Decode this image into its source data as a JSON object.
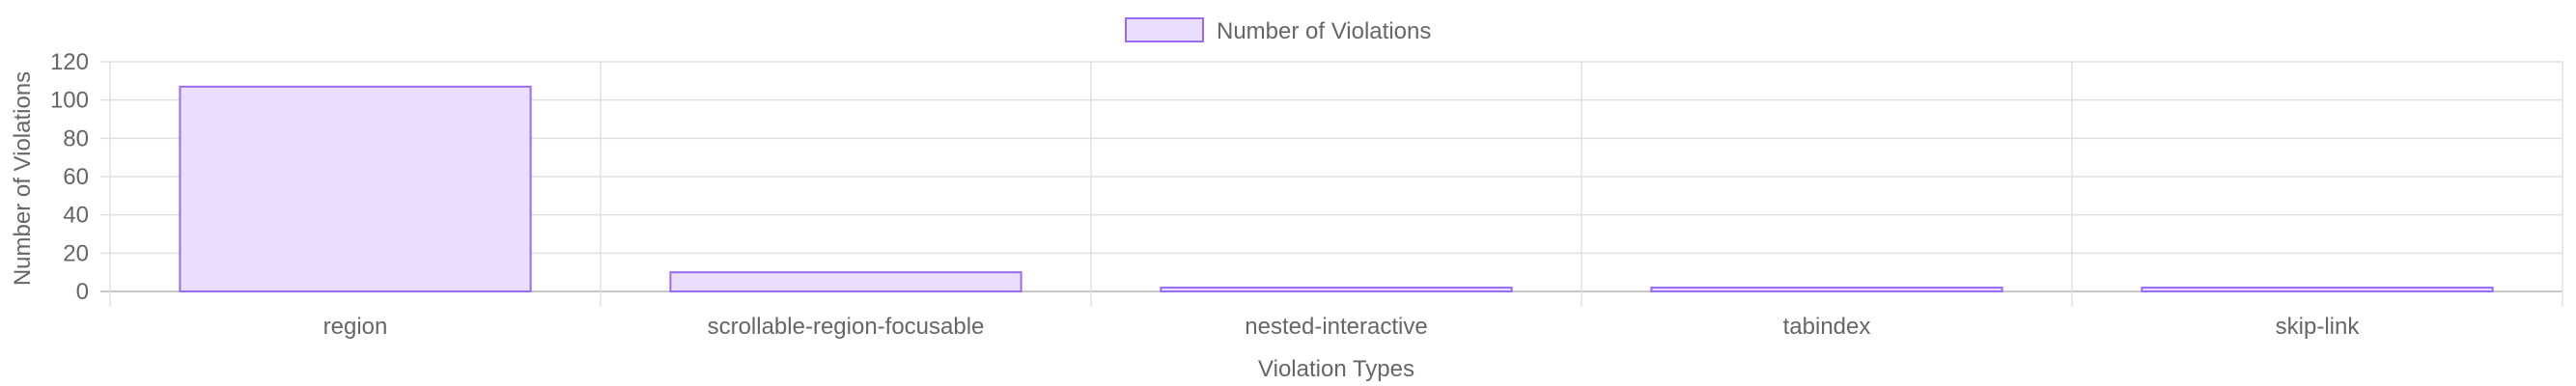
{
  "chart_data": {
    "type": "bar",
    "title": "",
    "xlabel": "Violation Types",
    "ylabel": "Number of Violations",
    "categories": [
      "region",
      "scrollable-region-focusable",
      "nested-interactive",
      "tabindex",
      "skip-link"
    ],
    "series": [
      {
        "name": "Number of Violations",
        "values": [
          107,
          10,
          2,
          2,
          2
        ]
      }
    ],
    "ylim": [
      0,
      120
    ],
    "yticks": [
      0,
      20,
      40,
      60,
      80,
      100,
      120
    ],
    "grid": true,
    "legend_position": "top-center",
    "colors": {
      "bar_fill": "#E9DFFC",
      "bar_border": "#9B6BF2",
      "grid": "#E0E0E0",
      "text": "#666666"
    }
  }
}
